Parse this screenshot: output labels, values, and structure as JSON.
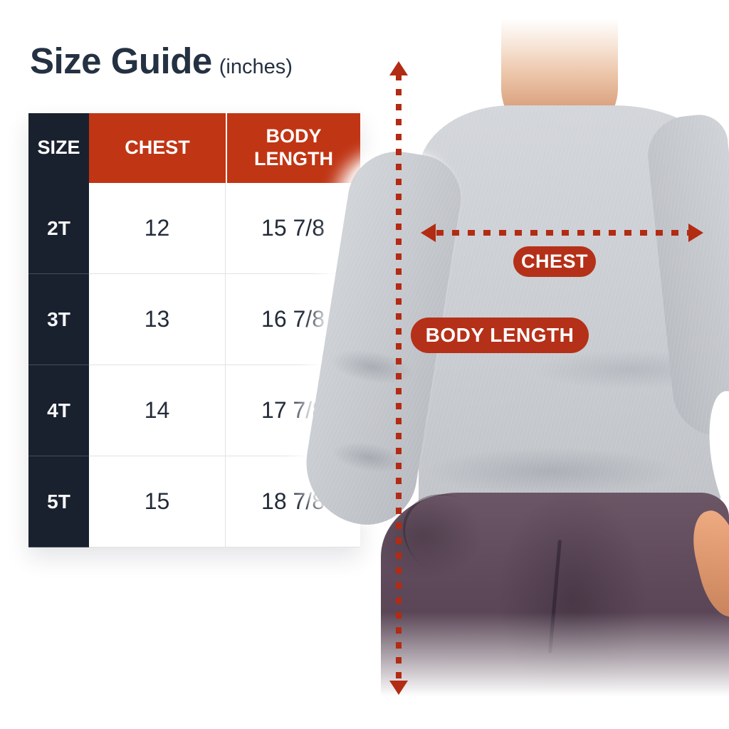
{
  "title": {
    "main": "Size Guide",
    "unit": "(inches)"
  },
  "table": {
    "columns": [
      "SIZE",
      "CHEST",
      "BODY LENGTH"
    ],
    "rows": [
      {
        "size": "2T",
        "chest": "12",
        "body_length": "15 7/8"
      },
      {
        "size": "3T",
        "chest": "13",
        "body_length": "16 7/8"
      },
      {
        "size": "4T",
        "chest": "14",
        "body_length": "17 7/8"
      },
      {
        "size": "5T",
        "chest": "15",
        "body_length": "18 7/8"
      }
    ]
  },
  "annotations": {
    "chest_label": "CHEST",
    "body_length_label": "BODY LENGTH"
  },
  "colors": {
    "header_red": "#c03514",
    "badge_red": "#b53018",
    "arrow_red": "#b22b13",
    "dark_cell": "#1a212e",
    "title_navy": "#243142",
    "value_navy": "#222b39",
    "shirt_gray": "#c9ccd1",
    "pants_plum": "#5d4859"
  }
}
